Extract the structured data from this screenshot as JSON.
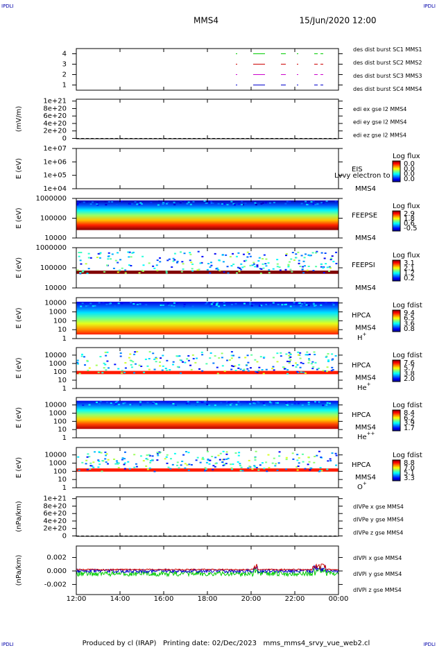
{
  "header": {
    "corner_tl": "IPDLI",
    "corner_tr": "IPDLI",
    "corner_bl": "IPDLI",
    "corner_br": "IPDLI",
    "spacecraft": "MMS4",
    "date": "15/Jun/2020 12:00"
  },
  "footer": "Produced by cl (IRAP)   Printing date: 02/Dec/2023   mms_mms4_srvy_vue_web2.cl",
  "xticks": [
    "12:00",
    "14:00",
    "16:00",
    "18:00",
    "20:00",
    "22:00",
    "00:00"
  ],
  "panels": [
    {
      "ylim": [
        0.5,
        4.5
      ],
      "yticks": [
        1,
        2,
        3,
        4
      ],
      "log": false,
      "lines": [
        {
          "text": "des dist burst SC1 MMS1",
          "color": "#0000cc"
        },
        {
          "text": "des dist burst SC2 MMS2",
          "color": "#cc00cc"
        },
        {
          "text": "des dist burst SC3 MMS3",
          "color": "#cc0000"
        },
        {
          "text": "des dist burst SC4 MMS4",
          "color": "#00cc00"
        }
      ]
    },
    {
      "ylabel": "(mV/m)",
      "ylim": [
        -1e+19,
        1.05e+21
      ],
      "log": false,
      "yticks": [
        0,
        {
          "value": 2e+20,
          "label": "2e+20"
        },
        {
          "value": 4e+20,
          "label": "4e+20"
        },
        {
          "value": 6e+20,
          "label": "6e+20"
        },
        {
          "value": 8e+20,
          "label": "8e+20"
        },
        {
          "value": 1e+21,
          "label": "1e+21"
        }
      ],
      "lines": [
        {
          "text": "edi ex gse l2 MMS4",
          "color": "#cc0000"
        },
        {
          "text": "edi ey gse l2 MMS4",
          "color": "#00cc00"
        },
        {
          "text": "edi ez gse l2 MMS4",
          "color": "#0000cc"
        }
      ]
    },
    {
      "ylabel": "E (eV)",
      "ylim": [
        10000,
        10000000
      ],
      "log": true,
      "yticks": [
        {
          "value": 10000,
          "label": "1e+04"
        },
        {
          "value": 100000,
          "label": "1e+05"
        },
        {
          "value": 1000000,
          "label": "1e+06"
        },
        {
          "value": 10000000,
          "label": "1e+07"
        }
      ],
      "instrument": "EIS",
      "overlay": "Lvvy electron to",
      "mission": "MMS4",
      "cbar": {
        "title": "Log flux",
        "labels": [
          "0.0",
          "0.0",
          "0.0",
          "0.0"
        ]
      }
    },
    {
      "ylabel": "E (eV)",
      "ylim": [
        10000,
        1000000
      ],
      "log": true,
      "yticks": [
        10000,
        100000,
        1000000
      ],
      "instrument": "FEEPSE",
      "mission": "MMS4",
      "cbar": {
        "title": "Log flux",
        "labels": [
          "2.9",
          "1.8",
          "0.6",
          "-0.5"
        ]
      }
    },
    {
      "ylabel": "E (eV)",
      "ylim": [
        10000,
        1000000
      ],
      "log": true,
      "yticks": [
        10000,
        100000,
        1000000
      ],
      "instrument": "FEEPSI",
      "mission": "MMS4",
      "cbar": {
        "title": "Log flux",
        "labels": [
          "3.1",
          "2.1",
          "1.2",
          "0.2"
        ]
      }
    },
    {
      "ylabel": "E (eV)",
      "ylim": [
        1,
        40000
      ],
      "log": true,
      "yticks": [
        1,
        10,
        100,
        1000,
        10000
      ],
      "instrument": "HPCA",
      "mission": "MMS4",
      "species": {
        "base": "H",
        "sup": "+"
      },
      "cbar": {
        "title": "Log fdist",
        "labels": [
          "9.4",
          "6.5",
          "3.6",
          "0.8"
        ]
      }
    },
    {
      "ylabel": "E (eV)",
      "ylim": [
        1,
        80000
      ],
      "log": true,
      "yticks": [
        1,
        10,
        100,
        1000,
        10000
      ],
      "instrument": "HPCA",
      "mission": "MMS4",
      "species": {
        "base": "He",
        "sup": "+"
      },
      "cbar": {
        "title": "Log fdist",
        "labels": [
          "7.6",
          "5.7",
          "3.8",
          "2.0"
        ]
      }
    },
    {
      "ylabel": "E (eV)",
      "ylim": [
        1,
        80000
      ],
      "log": true,
      "yticks": [
        1,
        10,
        100,
        1000,
        10000
      ],
      "instrument": "HPCA",
      "mission": "MMS4",
      "species": {
        "base": "He",
        "sup": "++"
      },
      "cbar": {
        "title": "Log fdist",
        "labels": [
          "8.4",
          "6.2",
          "3.9",
          "1.7"
        ]
      }
    },
    {
      "ylabel": "E (eV)",
      "ylim": [
        1,
        80000
      ],
      "log": true,
      "yticks": [
        1,
        10,
        100,
        1000,
        10000
      ],
      "instrument": "HPCA",
      "mission": "MMS4",
      "species": {
        "base": "O",
        "sup": "+"
      },
      "cbar": {
        "title": "Log fdist",
        "labels": [
          "8.8",
          "7.0",
          "5.1",
          "3.3"
        ]
      }
    },
    {
      "ylabel": "(nPa/km)",
      "ylim": [
        -1e+19,
        1.05e+21
      ],
      "log": false,
      "yticks": [
        0,
        {
          "value": 2e+20,
          "label": "2e+20"
        },
        {
          "value": 4e+20,
          "label": "4e+20"
        },
        {
          "value": 6e+20,
          "label": "6e+20"
        },
        {
          "value": 8e+20,
          "label": "8e+20"
        },
        {
          "value": 1e+21,
          "label": "1e+21"
        }
      ],
      "lines": [
        {
          "text": "dIVPe x gse MMS4",
          "color": "#cc0000"
        },
        {
          "text": "dIVPe y gse MMS4",
          "color": "#00cc00"
        },
        {
          "text": "dIVPe z gse MMS4",
          "color": "#0000cc"
        }
      ]
    },
    {
      "ylabel": "(nPa/km)",
      "ylim": [
        -0.0035,
        0.0037
      ],
      "log": false,
      "yticks": [
        -0.002,
        {
          "value": 0,
          "label": "0.000"
        },
        0.002
      ],
      "lines": [
        {
          "text": "dIVPi x gse MMS4",
          "color": "#cc0000"
        },
        {
          "text": "dIVPi y gse MMS4",
          "color": "#00cc00"
        },
        {
          "text": "dIVPi z gse MMS4",
          "color": "#0000cc"
        }
      ]
    }
  ]
}
